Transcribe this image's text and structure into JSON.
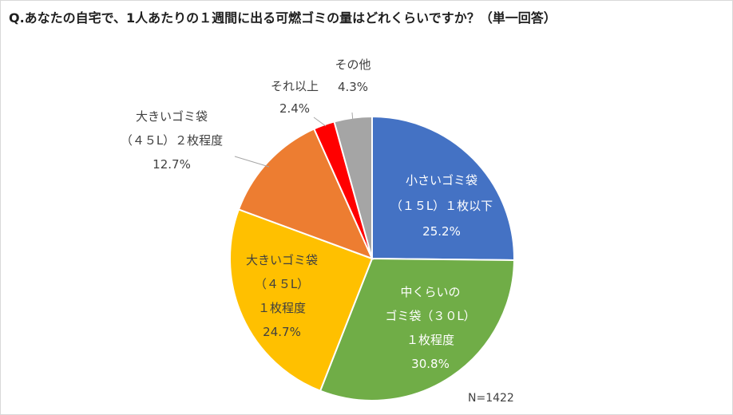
{
  "title": "Q.あなたの自宅で、1人あたりの１週間に出る可燃ゴミの量はどれくらいですか？（単一回答）",
  "sample_note": "N=1422",
  "chart_data": {
    "type": "pie",
    "title": "Q.あなたの自宅で、1人あたりの１週間に出る可燃ゴミの量はどれくらいですか？（単一回答）",
    "start": "12 o'clock, clockwise",
    "slices": [
      {
        "label_lines": [
          "小さいゴミ袋",
          "（１５L）１枚以下"
        ],
        "value": 25.2,
        "pct": "25.2%",
        "color": "#4472c4",
        "label_pos": "inside"
      },
      {
        "label_lines": [
          "中くらいの",
          "ゴミ袋（３０L）",
          "１枚程度"
        ],
        "value": 30.8,
        "pct": "30.8%",
        "color": "#70ad47",
        "label_pos": "inside"
      },
      {
        "label_lines": [
          "大きいゴミ袋",
          "（４５L）",
          "１枚程度"
        ],
        "value": 24.7,
        "pct": "24.7%",
        "color": "#ffc000",
        "label_pos": "inside"
      },
      {
        "label_lines": [
          "大きいゴミ袋",
          "（４５L）２枚程度"
        ],
        "value": 12.7,
        "pct": "12.7%",
        "color": "#ed7d31",
        "label_pos": "outside"
      },
      {
        "label_lines": [
          "それ以上"
        ],
        "value": 2.4,
        "pct": "2.4%",
        "color": "#ff0000",
        "label_pos": "outside"
      },
      {
        "label_lines": [
          "その他"
        ],
        "value": 4.3,
        "pct": "4.3%",
        "color": "#a5a5a5",
        "label_pos": "outside"
      }
    ],
    "legend": "none"
  }
}
